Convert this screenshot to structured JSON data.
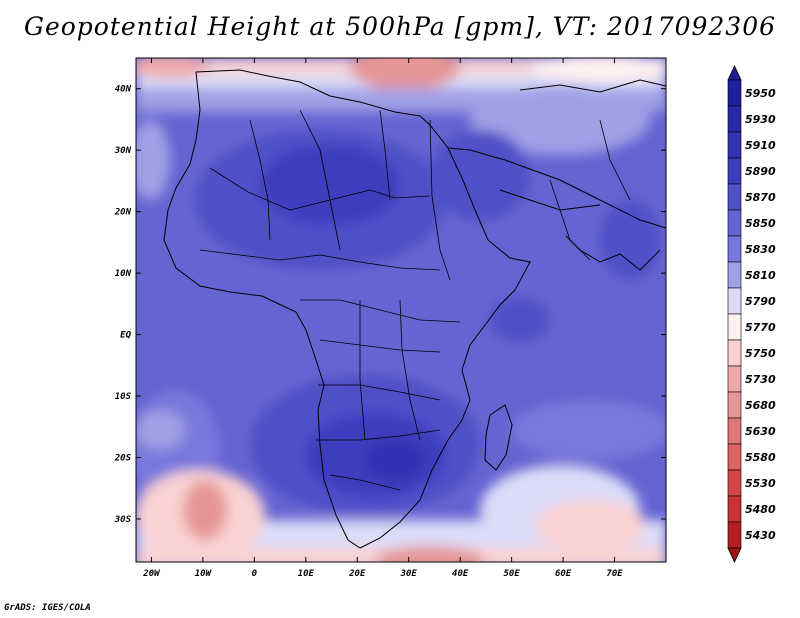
{
  "title": "Geopotential Height at 500hPa [gpm], VT: 2017092306",
  "credit": "GrADS: IGES/COLA",
  "map": {
    "lon_range": [
      -23,
      80
    ],
    "lat_range": [
      -37,
      45
    ],
    "x_ticks": [
      {
        "lon": -20,
        "label": "20W"
      },
      {
        "lon": -10,
        "label": "10W"
      },
      {
        "lon": 0,
        "label": "0"
      },
      {
        "lon": 10,
        "label": "10E"
      },
      {
        "lon": 20,
        "label": "20E"
      },
      {
        "lon": 30,
        "label": "30E"
      },
      {
        "lon": 40,
        "label": "40E"
      },
      {
        "lon": 50,
        "label": "50E"
      },
      {
        "lon": 60,
        "label": "60E"
      },
      {
        "lon": 70,
        "label": "70E"
      }
    ],
    "y_ticks": [
      {
        "lat": 40,
        "label": "40N"
      },
      {
        "lat": 30,
        "label": "30N"
      },
      {
        "lat": 20,
        "label": "20N"
      },
      {
        "lat": 10,
        "label": "10N"
      },
      {
        "lat": 0,
        "label": "EQ"
      },
      {
        "lat": -10,
        "label": "10S"
      },
      {
        "lat": -20,
        "label": "20S"
      },
      {
        "lat": -30,
        "label": "30S"
      }
    ]
  },
  "colorbar": {
    "levels": [
      {
        "label": "5950",
        "color": "#1e1ea0"
      },
      {
        "label": "5930",
        "color": "#2828aa"
      },
      {
        "label": "5910",
        "color": "#3232b4"
      },
      {
        "label": "5890",
        "color": "#3c3cbe"
      },
      {
        "label": "5870",
        "color": "#5050c8"
      },
      {
        "label": "5850",
        "color": "#6464d2"
      },
      {
        "label": "5830",
        "color": "#7878dc"
      },
      {
        "label": "5810",
        "color": "#a0a0e6"
      },
      {
        "label": "5790",
        "color": "#dcdcf8"
      },
      {
        "label": "5770",
        "color": "#fff0f0"
      },
      {
        "label": "5750",
        "color": "#fad2d2"
      },
      {
        "label": "5730",
        "color": "#f0aaaa"
      },
      {
        "label": "5680",
        "color": "#e69696"
      },
      {
        "label": "5630",
        "color": "#e07878"
      },
      {
        "label": "5580",
        "color": "#dc6464"
      },
      {
        "label": "5530",
        "color": "#d24646"
      },
      {
        "label": "5480",
        "color": "#c83232"
      },
      {
        "label": "5430",
        "color": "#b41e1e"
      }
    ],
    "top_color": "#1e1e96",
    "bottom_color": "#a01414"
  }
}
